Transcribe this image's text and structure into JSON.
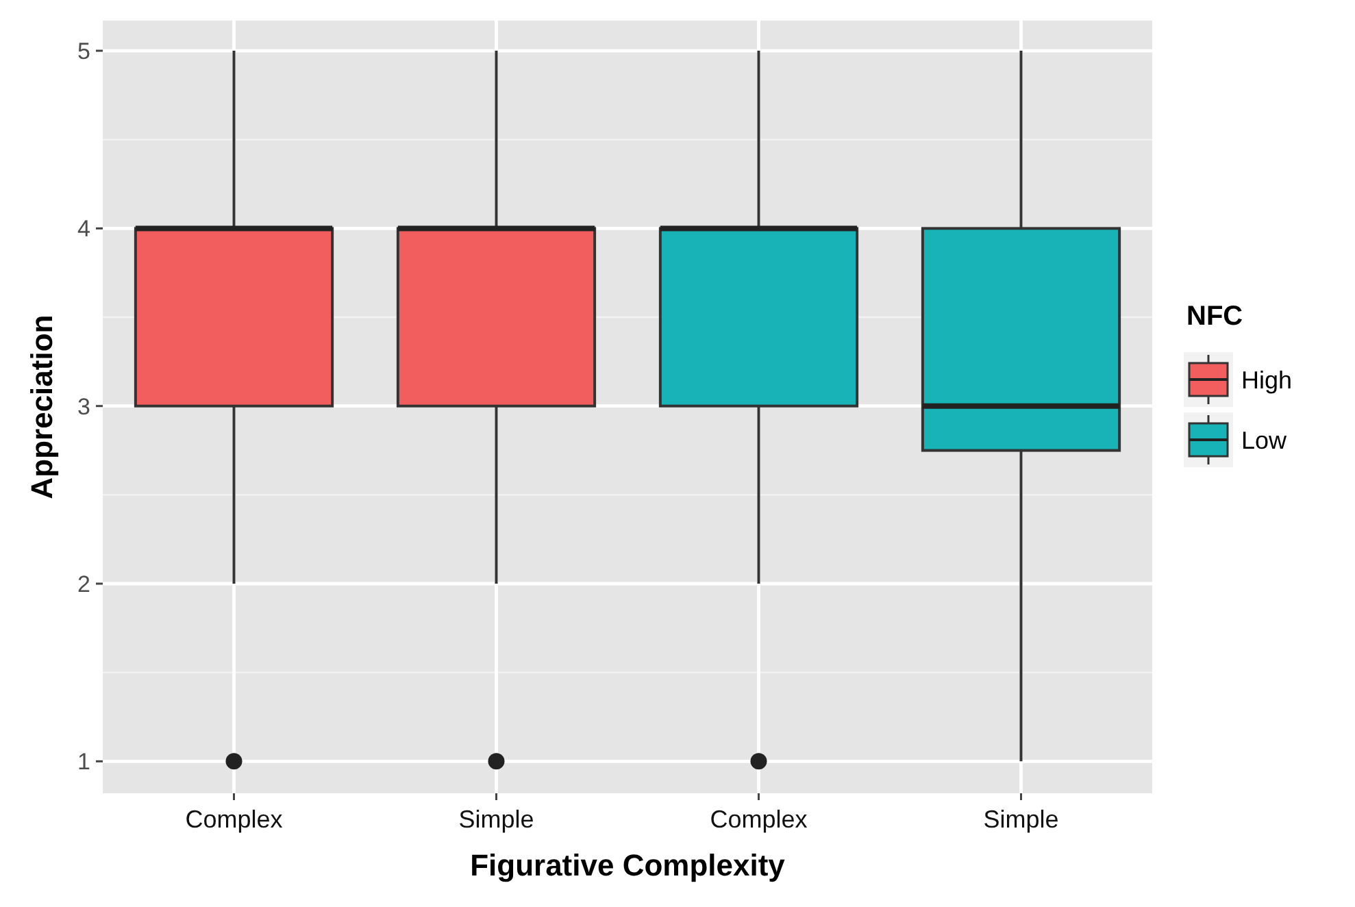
{
  "chart_data": {
    "type": "box",
    "xlabel": "Figurative Complexity",
    "ylabel": "Appreciation",
    "legend_title": "NFC",
    "categories": [
      "Complex",
      "Simple",
      "Complex",
      "Simple"
    ],
    "series": [
      {
        "name": "High",
        "color": "#f25e5e",
        "boxes": [
          {
            "low": 2,
            "q1": 3,
            "median": 4,
            "q3": 4,
            "high": 5,
            "outliers": [
              1
            ]
          },
          {
            "low": 2,
            "q1": 3,
            "median": 4,
            "q3": 4,
            "high": 5,
            "outliers": [
              1
            ]
          },
          null,
          null
        ]
      },
      {
        "name": "Low",
        "color": "#17b3b7",
        "boxes": [
          null,
          null,
          {
            "low": 2,
            "q1": 3,
            "median": 4,
            "q3": 4,
            "high": 5,
            "outliers": [
              1
            ]
          },
          {
            "low": 1,
            "q1": 2.75,
            "median": 3,
            "q3": 4,
            "high": 5
          }
        ]
      }
    ],
    "ylim": [
      0.82,
      5.17
    ],
    "yticks": [
      1,
      2,
      3,
      4,
      5
    ],
    "grid": true,
    "legend": "right"
  }
}
